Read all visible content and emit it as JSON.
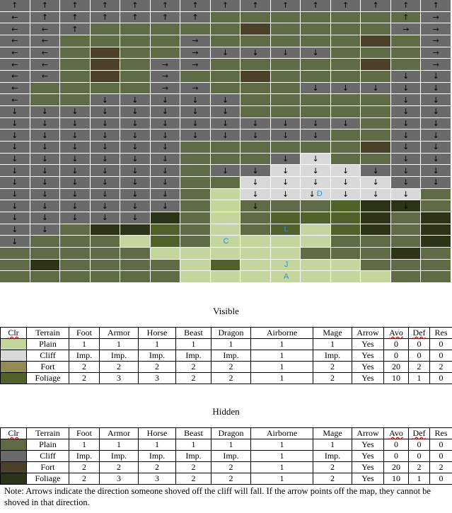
{
  "palette": {
    "P": "#c3d69b",
    "C": "#d9d9d9",
    "F": "#948a54",
    "G": "#4f6228",
    "hp": "#5e6b45",
    "hc": "#6a6a6a",
    "hf": "#4a4128",
    "hg": "#2b3416"
  },
  "map": {
    "rows": [
      [
        "hc",
        "hc",
        "hc",
        "hc",
        "hc",
        "hc",
        "hc",
        "hc",
        "hc",
        "hc",
        "hc",
        "hc",
        "hc",
        "hc",
        "hc"
      ],
      [
        "hc",
        "hc",
        "hc",
        "hc",
        "hc",
        "hc",
        "hc",
        "hp",
        "hp",
        "hp",
        "hp",
        "hp",
        "hp",
        "hp",
        "hc"
      ],
      [
        "hc",
        "hc",
        "hc",
        "hp",
        "hp",
        "hp",
        "hp",
        "hp",
        "hf",
        "hp",
        "hp",
        "hp",
        "hp",
        "hc",
        "hc"
      ],
      [
        "hc",
        "hc",
        "hp",
        "hp",
        "hp",
        "hp",
        "hc",
        "hp",
        "hp",
        "hp",
        "hp",
        "hp",
        "hf",
        "hp",
        "hc"
      ],
      [
        "hc",
        "hc",
        "hp",
        "hf",
        "hp",
        "hp",
        "hc",
        "hc",
        "hc",
        "hc",
        "hc",
        "hp",
        "hp",
        "hp",
        "hc"
      ],
      [
        "hc",
        "hc",
        "hp",
        "hf",
        "hp",
        "hc",
        "hc",
        "hp",
        "hp",
        "hp",
        "hp",
        "hp",
        "hf",
        "hp",
        "hc"
      ],
      [
        "hc",
        "hc",
        "hp",
        "hf",
        "hp",
        "hc",
        "hp",
        "hp",
        "hf",
        "hp",
        "hp",
        "hp",
        "hp",
        "hc",
        "hc"
      ],
      [
        "hc",
        "hp",
        "hp",
        "hp",
        "hp",
        "hc",
        "hc",
        "hp",
        "hp",
        "hp",
        "hc",
        "hc",
        "hc",
        "hc",
        "hc"
      ],
      [
        "hc",
        "hp",
        "hp",
        "hc",
        "hc",
        "hc",
        "hc",
        "hc",
        "hp",
        "hp",
        "hp",
        "hp",
        "hp",
        "hc",
        "hc"
      ],
      [
        "hc",
        "hc",
        "hc",
        "hc",
        "hc",
        "hc",
        "hc",
        "hc",
        "hp",
        "hp",
        "hp",
        "hp",
        "hp",
        "hc",
        "hc"
      ],
      [
        "hc",
        "hc",
        "hc",
        "hc",
        "hc",
        "hc",
        "hc",
        "hc",
        "hc",
        "hc",
        "hc",
        "hc",
        "hp",
        "hc",
        "hc"
      ],
      [
        "hc",
        "hc",
        "hc",
        "hc",
        "hc",
        "hc",
        "hc",
        "hc",
        "hc",
        "hc",
        "hc",
        "hp",
        "hp",
        "hc",
        "hc"
      ],
      [
        "hc",
        "hc",
        "hc",
        "hc",
        "hc",
        "hc",
        "hp",
        "hp",
        "hp",
        "hp",
        "hp",
        "hp",
        "hf",
        "hc",
        "hc"
      ],
      [
        "hc",
        "hc",
        "hc",
        "hc",
        "hc",
        "hc",
        "hp",
        "hp",
        "hp",
        "hc",
        "C",
        "hp",
        "hp",
        "hc",
        "hc"
      ],
      [
        "hc",
        "hc",
        "hc",
        "hc",
        "hc",
        "hc",
        "hp",
        "hc",
        "hc",
        "C",
        "C",
        "C",
        "hc",
        "hc",
        "hc"
      ],
      [
        "hc",
        "hc",
        "hc",
        "hc",
        "hc",
        "hc",
        "hp",
        "hp",
        "C",
        "C",
        "C",
        "C",
        "C",
        "hc",
        "hc"
      ],
      [
        "hc",
        "hc",
        "hc",
        "hc",
        "hc",
        "hc",
        "hp",
        "P",
        "C",
        "C",
        "C",
        "C",
        "C",
        "C",
        "hp"
      ],
      [
        "hc",
        "hc",
        "hc",
        "hc",
        "hc",
        "hc",
        "hp",
        "P",
        "hp",
        "hp",
        "hp",
        "G",
        "hg",
        "hg",
        "hp"
      ],
      [
        "hc",
        "hc",
        "hc",
        "hc",
        "hc",
        "hg",
        "hp",
        "P",
        "hp",
        "G",
        "G",
        "G",
        "hg",
        "hp",
        "hg"
      ],
      [
        "hc",
        "hc",
        "hp",
        "hg",
        "hg",
        "G",
        "hp",
        "P",
        "hp",
        "G",
        "P",
        "G",
        "hg",
        "hp",
        "hg"
      ],
      [
        "hc",
        "hp",
        "hp",
        "hp",
        "P",
        "G",
        "hp",
        "P",
        "P",
        "P",
        "P",
        "hp",
        "hp",
        "hp",
        "hg"
      ],
      [
        "hp",
        "hp",
        "hp",
        "hp",
        "hp",
        "P",
        "P",
        "P",
        "P",
        "P",
        "hp",
        "hp",
        "hp",
        "hg",
        "hp"
      ],
      [
        "hp",
        "hg",
        "hp",
        "hp",
        "hp",
        "hp",
        "P",
        "G",
        "P",
        "P",
        "P",
        "P",
        "hp",
        "hp",
        "hp"
      ],
      [
        "hp",
        "hp",
        "hp",
        "hp",
        "hp",
        "hp",
        "P",
        "P",
        "P",
        "P",
        "P",
        "P",
        "P",
        "hp",
        "hp"
      ]
    ],
    "arrows": [
      [
        "↑",
        "↑",
        "↑",
        "↑",
        "↑",
        "↑",
        "↑",
        "↑",
        "↑",
        "↑",
        "↑",
        "↑",
        "↑",
        "↑",
        "↑"
      ],
      [
        "←",
        "↑",
        "↑",
        "↑",
        "↑",
        "↑",
        "↑",
        "",
        "",
        "",
        "",
        "",
        "",
        "↑",
        "→"
      ],
      [
        "←",
        "←",
        "↑",
        "",
        "",
        "",
        "",
        "",
        "",
        "",
        "",
        "",
        "",
        "→",
        "→"
      ],
      [
        "←",
        "←",
        "",
        "",
        "",
        "",
        "→",
        "",
        "",
        "",
        "",
        "",
        "",
        "",
        "→"
      ],
      [
        "←",
        "←",
        "",
        "",
        "",
        "",
        "→",
        "↓",
        "↓",
        "↓",
        "↓",
        "",
        "",
        "",
        "→"
      ],
      [
        "←",
        "←",
        "",
        "",
        "",
        "→",
        "→",
        "",
        "",
        "",
        "",
        "",
        "",
        "",
        "→"
      ],
      [
        "←",
        "←",
        "",
        "",
        "",
        "→",
        "",
        "",
        "",
        "",
        "",
        "",
        "",
        "↓",
        "↓"
      ],
      [
        "←",
        "",
        "",
        "",
        "",
        "→",
        "→",
        "",
        "",
        "",
        "↓",
        "↓",
        "↓",
        "↓",
        "↓"
      ],
      [
        "←",
        "",
        "",
        "↓",
        "↓",
        "↓",
        "↓",
        "↓",
        "",
        "",
        "",
        "",
        "",
        "↓",
        "↓"
      ],
      [
        "↓",
        "↓",
        "↓",
        "↓",
        "↓",
        "↓",
        "↓",
        "↓",
        "",
        "",
        "",
        "",
        "",
        "↓",
        "↓"
      ],
      [
        "↓",
        "↓",
        "↓",
        "↓",
        "↓",
        "↓",
        "↓",
        "↓",
        "↓",
        "↓",
        "↓",
        "↓",
        "",
        "↓",
        "↓"
      ],
      [
        "↓",
        "↓",
        "↓",
        "↓",
        "↓",
        "↓",
        "↓",
        "↓",
        "↓",
        "↓",
        "↓",
        "",
        "",
        "↓",
        "↓"
      ],
      [
        "↓",
        "↓",
        "↓",
        "↓",
        "↓",
        "↓",
        "",
        "",
        "",
        "",
        "",
        "",
        "",
        "↓",
        "↓"
      ],
      [
        "↓",
        "↓",
        "↓",
        "↓",
        "↓",
        "↓",
        "",
        "",
        "",
        "↓",
        "↓",
        "",
        "",
        "↓",
        "↓"
      ],
      [
        "↓",
        "↓",
        "↓",
        "↓",
        "↓",
        "↓",
        "",
        "↓",
        "↓",
        "↓",
        "↓",
        "↓",
        "↓",
        "↓",
        "↓"
      ],
      [
        "↓",
        "↓",
        "↓",
        "↓",
        "↓",
        "↓",
        "",
        "",
        "↓",
        "↓",
        "↓",
        "↓",
        "↓",
        "↓",
        "↓"
      ],
      [
        "↓",
        "↓",
        "↓",
        "↓",
        "↓",
        "↓",
        "",
        "",
        "↓",
        "↓",
        "↓",
        "↓",
        "↓",
        "↓",
        ""
      ],
      [
        "↓",
        "↓",
        "↓",
        "↓",
        "↓",
        "↓",
        "",
        "",
        "↓",
        "",
        "",
        "",
        "",
        "↓",
        ""
      ],
      [
        "↓",
        "↓",
        "↓",
        "↓",
        "↓",
        "",
        "",
        "",
        "",
        "",
        "",
        "",
        "",
        "",
        ""
      ],
      [
        "↓",
        "↓",
        "",
        "",
        "",
        "",
        "",
        "",
        "",
        "",
        "",
        "",
        "",
        "",
        ""
      ],
      [
        "↓",
        "",
        "",
        "",
        "",
        "",
        "",
        "",
        "",
        "",
        "",
        "",
        "",
        "",
        ""
      ],
      [
        "",
        "",
        "",
        "",
        "",
        "",
        "",
        "",
        "",
        "",
        "",
        "",
        "",
        "",
        ""
      ],
      [
        "",
        "",
        "",
        "",
        "",
        "",
        "",
        "",
        "",
        "",
        "",
        "",
        "",
        "",
        ""
      ],
      [
        "",
        "",
        "",
        "",
        "",
        "",
        "",
        "",
        "",
        "",
        "",
        "",
        "",
        "",
        ""
      ]
    ],
    "markers": [
      {
        "row": 16,
        "col": 10,
        "label": "D"
      },
      {
        "row": 19,
        "col": 9,
        "label": "L"
      },
      {
        "row": 20,
        "col": 7,
        "label": "C"
      },
      {
        "row": 22,
        "col": 9,
        "label": "J"
      },
      {
        "row": 23,
        "col": 9,
        "label": "A"
      }
    ]
  },
  "visible": {
    "title": "Visible",
    "headers": [
      "Clr",
      "Terrain",
      "Foot",
      "Armor",
      "Horse",
      "Beast",
      "Dragon",
      "Airborne",
      "Mage",
      "Arrow",
      "Avo",
      "Def",
      "Res"
    ],
    "rows": [
      {
        "swatch": "P",
        "cells": [
          "Plain",
          "1",
          "1",
          "1",
          "1",
          "1",
          "1",
          "1",
          "Yes",
          "0",
          "0",
          "0"
        ]
      },
      {
        "swatch": "C",
        "cells": [
          "Cliff",
          "Imp.",
          "Imp.",
          "Imp.",
          "Imp.",
          "Imp.",
          "1",
          "Imp.",
          "Yes",
          "0",
          "0",
          "0"
        ]
      },
      {
        "swatch": "F",
        "cells": [
          "Fort",
          "2",
          "2",
          "2",
          "2",
          "2",
          "1",
          "2",
          "Yes",
          "20",
          "2",
          "2"
        ]
      },
      {
        "swatch": "G",
        "cells": [
          "Foliage",
          "2",
          "3",
          "3",
          "2",
          "2",
          "1",
          "2",
          "Yes",
          "10",
          "1",
          "0"
        ]
      }
    ]
  },
  "hidden": {
    "title": "Hidden",
    "headers": [
      "Clr",
      "Terrain",
      "Foot",
      "Armor",
      "Horse",
      "Beast",
      "Dragon",
      "Airborne",
      "Mage",
      "Arrow",
      "Avo",
      "Def",
      "Res"
    ],
    "rows": [
      {
        "swatch": "hp",
        "cells": [
          "Plain",
          "1",
          "1",
          "1",
          "1",
          "1",
          "1",
          "1",
          "Yes",
          "0",
          "0",
          "0"
        ]
      },
      {
        "swatch": "hc",
        "cells": [
          "Cliff",
          "Imp.",
          "Imp.",
          "Imp.",
          "Imp.",
          "Imp.",
          "1",
          "Imp.",
          "Yes",
          "0",
          "0",
          "0"
        ]
      },
      {
        "swatch": "hf",
        "cells": [
          "Fort",
          "2",
          "2",
          "2",
          "2",
          "2",
          "1",
          "2",
          "Yes",
          "20",
          "2",
          "2"
        ]
      },
      {
        "swatch": "hg",
        "cells": [
          "Foliage",
          "2",
          "3",
          "3",
          "2",
          "2",
          "1",
          "2",
          "Yes",
          "10",
          "1",
          "0"
        ]
      }
    ]
  },
  "note": "Note: Arrows indicate the direction someone shoved off the cliff will fall. If the arrow points off the map, they cannot be shoved in that direction."
}
